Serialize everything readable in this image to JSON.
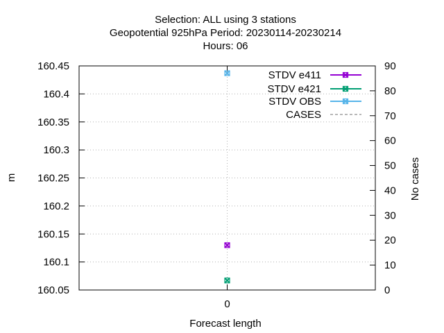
{
  "chart_data": {
    "type": "scatter",
    "title_lines": [
      "Selection: ALL using     3 stations",
      "Geopotential 925hPa   Period: 20230114-20230214",
      "Hours:  06"
    ],
    "xlabel": "Forecast length",
    "ylabel": "m",
    "y2label": "No cases",
    "x_ticks": [
      "0"
    ],
    "x_values": [
      0
    ],
    "xlim": [
      -1,
      1
    ],
    "ylim": [
      160.05,
      160.45
    ],
    "y_ticks": [
      "160.05",
      "160.1",
      "160.15",
      "160.2",
      "160.25",
      "160.3",
      "160.35",
      "160.4",
      "160.45"
    ],
    "y2lim": [
      0,
      90
    ],
    "y2_ticks": [
      "0",
      "10",
      "20",
      "30",
      "40",
      "50",
      "60",
      "70",
      "80",
      "90"
    ],
    "grid": true,
    "legend_position": "top-right",
    "series": [
      {
        "name": "STDV e411",
        "axis": "y",
        "color": "#9400d3",
        "marker": "x-box",
        "values": [
          160.13
        ]
      },
      {
        "name": "STDV e421",
        "axis": "y",
        "color": "#009e73",
        "marker": "x-box",
        "values": [
          160.067
        ]
      },
      {
        "name": "STDV OBS",
        "axis": "y",
        "color": "#56b4e9",
        "marker": "x-box",
        "values": [
          160.437
        ]
      },
      {
        "name": "CASES",
        "axis": "y2",
        "color": "#a0a0a0",
        "marker": "none",
        "dashed": true,
        "values": []
      }
    ]
  }
}
